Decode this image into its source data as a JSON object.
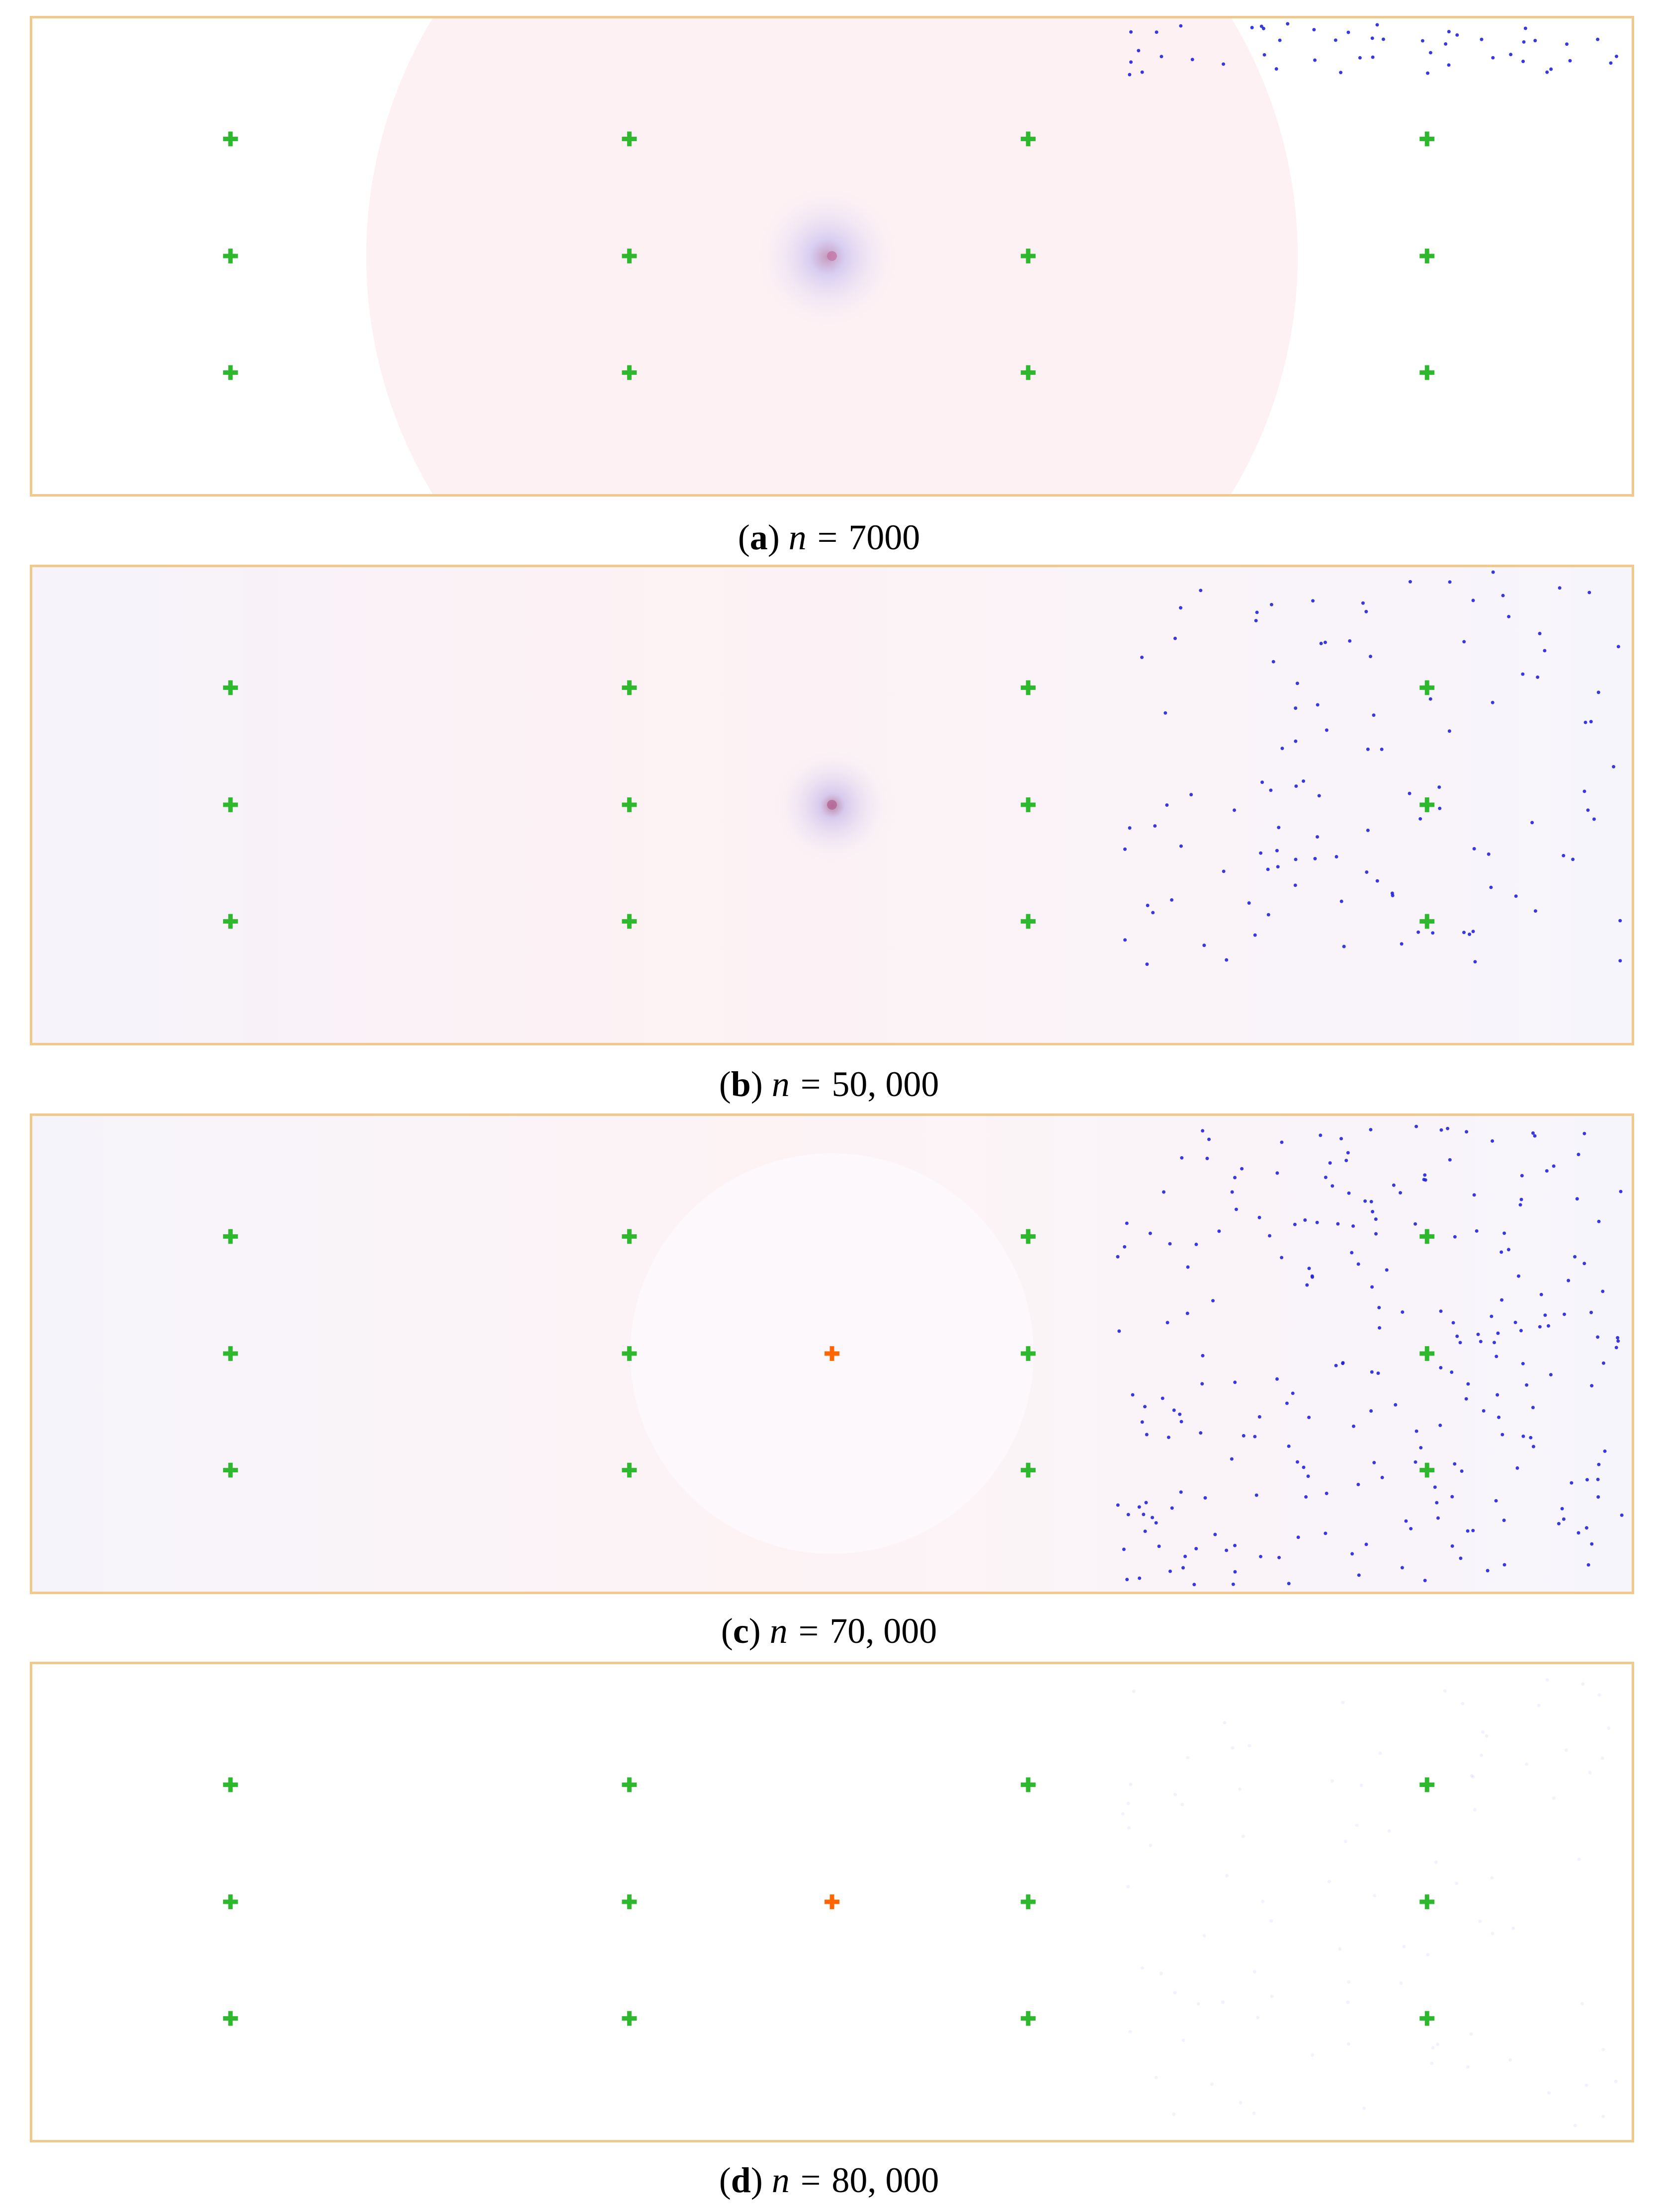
{
  "panels": [
    {
      "label": "a",
      "variable": "n",
      "equals": "=",
      "value": "7000"
    },
    {
      "label": "b",
      "variable": "n",
      "equals": "=",
      "value": "50, 000"
    },
    {
      "label": "c",
      "variable": "n",
      "equals": "=",
      "value": "70, 000"
    },
    {
      "label": "d",
      "variable": "n",
      "equals": "=",
      "value": "80, 000"
    }
  ],
  "colors": {
    "frame": "#f2c98d",
    "green_marker": "#2eb82e",
    "orange_marker": "#ff6600",
    "particle": "#2222dd"
  }
}
